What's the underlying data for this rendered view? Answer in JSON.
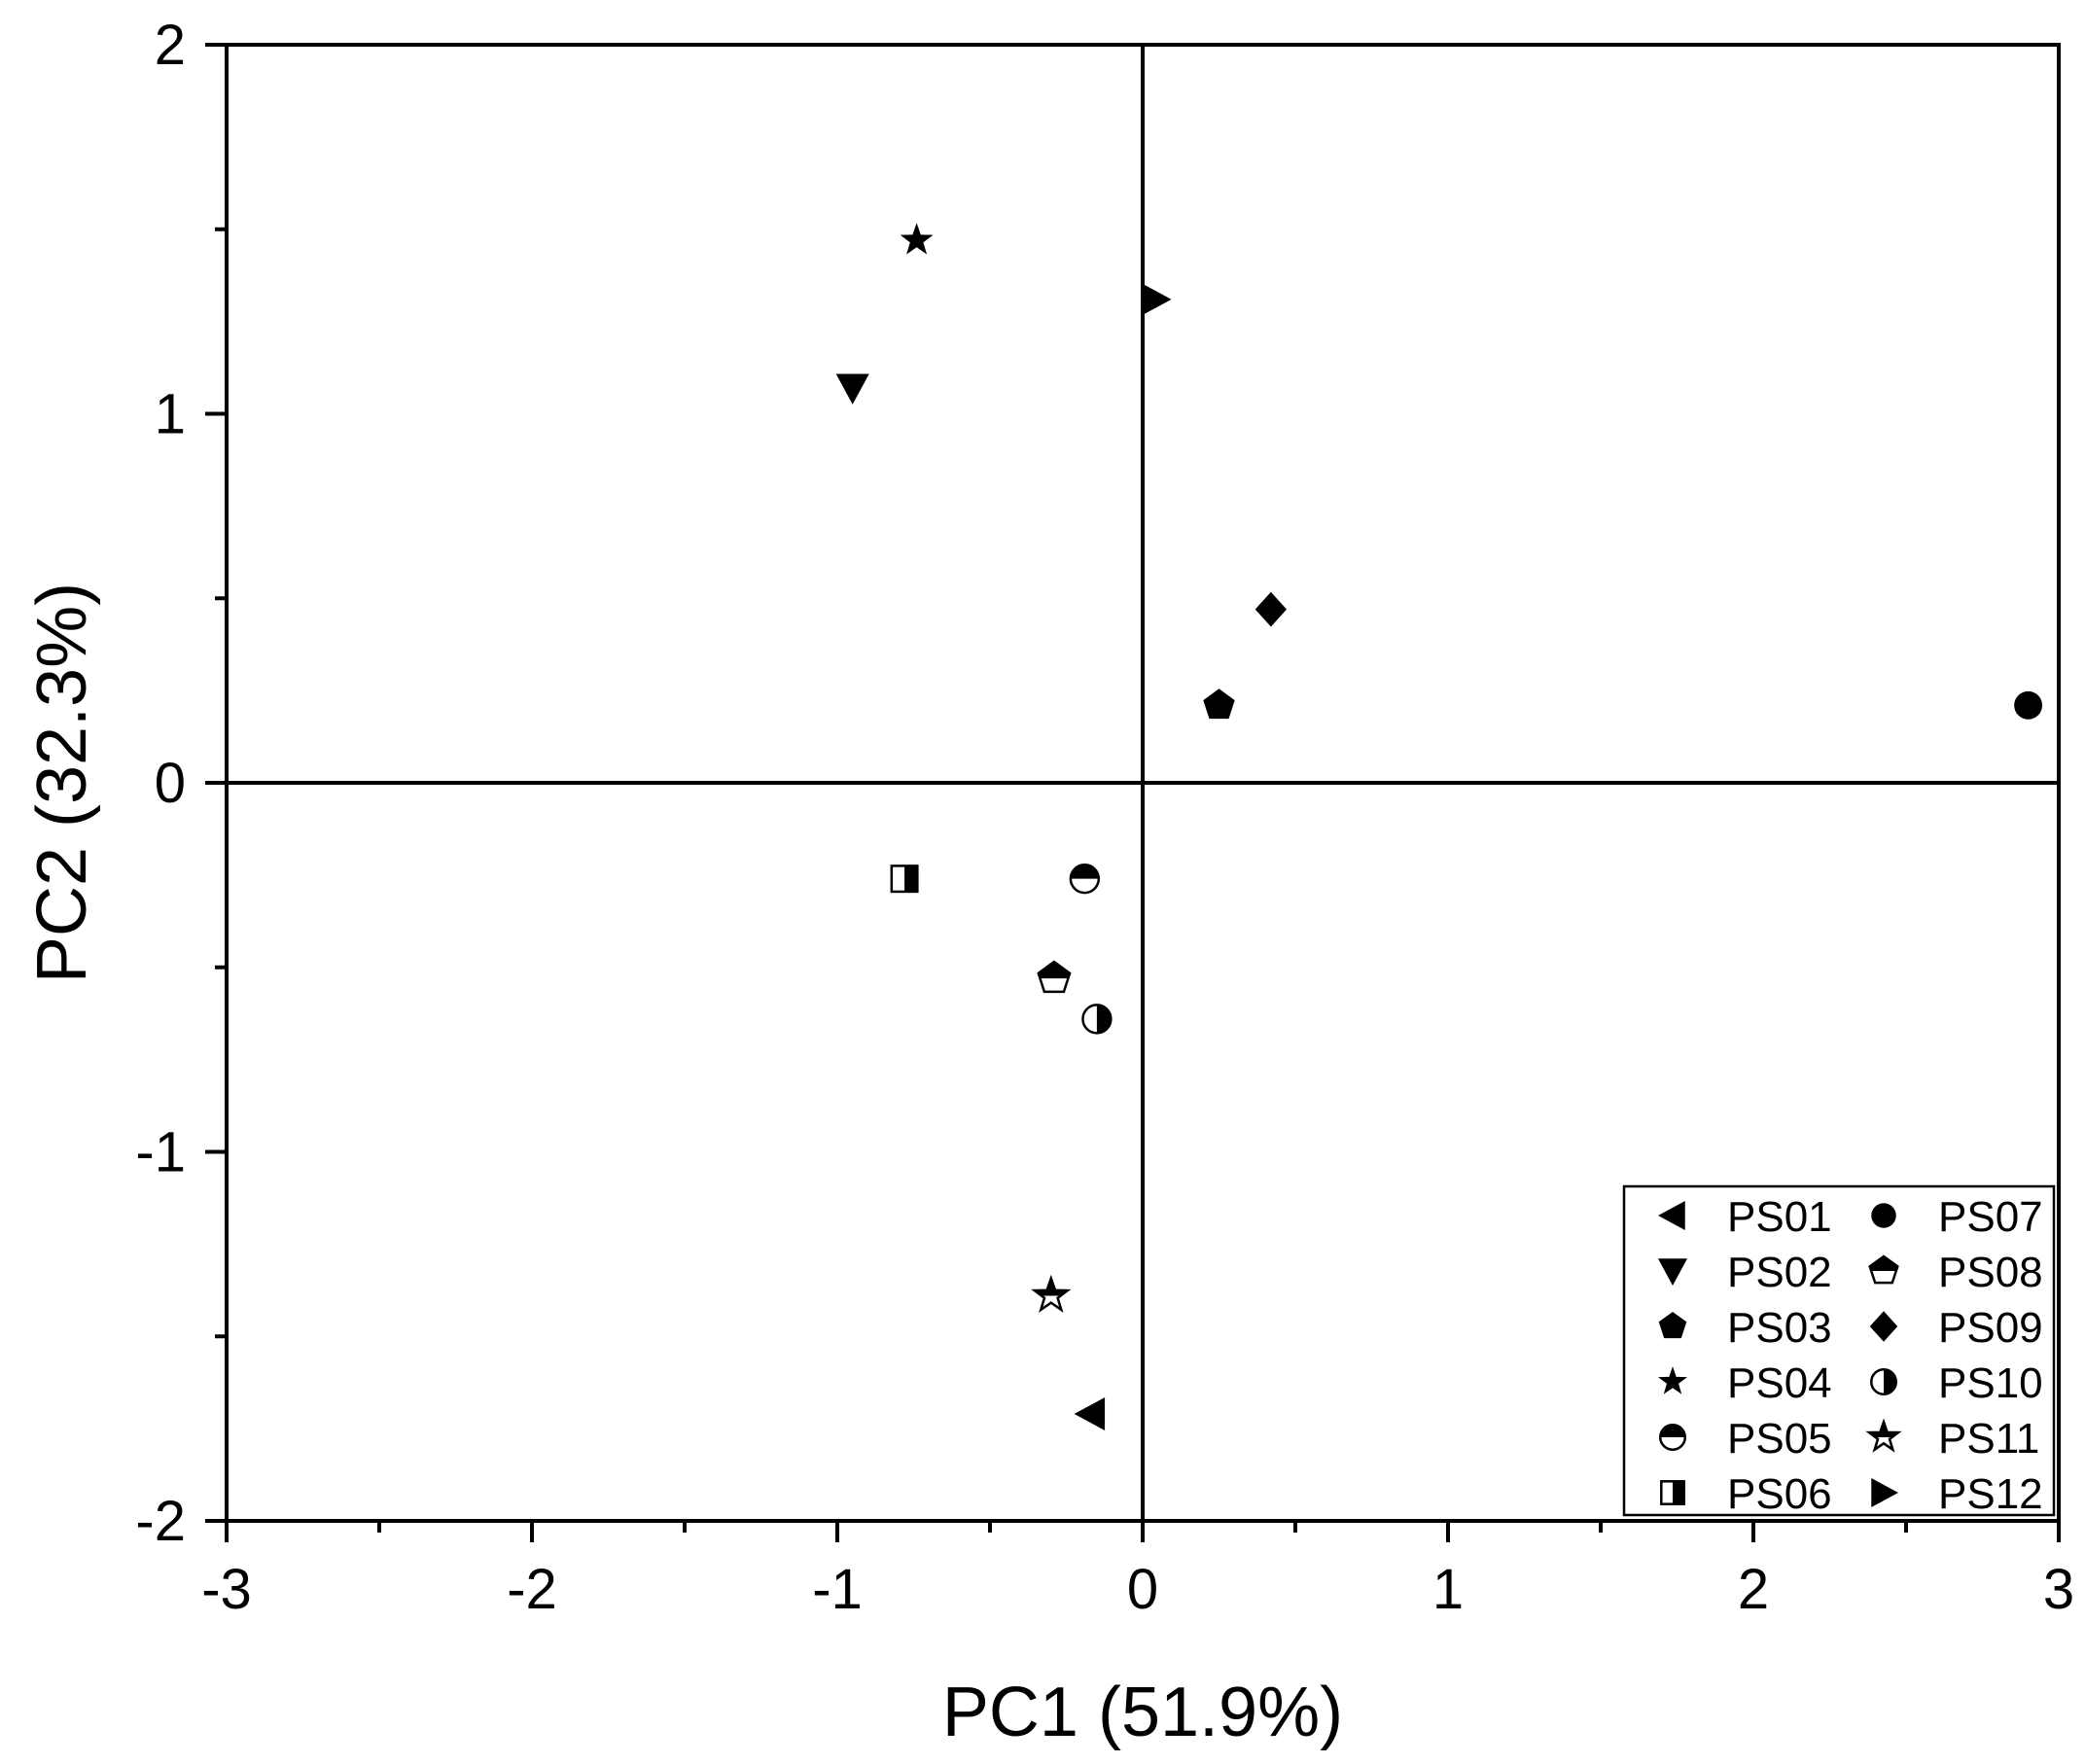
{
  "chart_data": {
    "type": "scatter",
    "title": "",
    "xlabel": "PC1 (51.9%)",
    "ylabel": "PC2 (32.3%)",
    "xlim": [
      -3,
      3
    ],
    "ylim": [
      -2,
      2
    ],
    "xticks": [
      -3,
      -2,
      -1,
      0,
      1,
      2,
      3
    ],
    "xtick_labels": [
      "-3",
      "-2",
      "-1",
      "0",
      "1",
      "2",
      "3"
    ],
    "yticks": [
      -2,
      -1,
      0,
      1,
      2
    ],
    "ytick_labels": [
      "-2",
      "-1",
      "0",
      "1",
      "2"
    ],
    "grid": false,
    "reference_lines": {
      "x": 0,
      "y": 0
    },
    "legend": {
      "position": "bottom-right",
      "columns": 2
    },
    "series": [
      {
        "name": "PS01",
        "marker": "triangle-left",
        "x": -0.17,
        "y": -1.71
      },
      {
        "name": "PS02",
        "marker": "triangle-down",
        "x": -0.95,
        "y": 1.07
      },
      {
        "name": "PS03",
        "marker": "pentagon",
        "x": 0.25,
        "y": 0.21
      },
      {
        "name": "PS04",
        "marker": "star",
        "x": -0.74,
        "y": 1.47
      },
      {
        "name": "PS05",
        "marker": "circle-half-top",
        "x": -0.19,
        "y": -0.26
      },
      {
        "name": "PS06",
        "marker": "square-half-right",
        "x": -0.78,
        "y": -0.26
      },
      {
        "name": "PS07",
        "marker": "circle",
        "x": 2.9,
        "y": 0.21
      },
      {
        "name": "PS08",
        "marker": "pentagon-half-top",
        "x": -0.29,
        "y": -0.53
      },
      {
        "name": "PS09",
        "marker": "diamond",
        "x": 0.42,
        "y": 0.47
      },
      {
        "name": "PS10",
        "marker": "circle-half-right",
        "x": -0.15,
        "y": -0.64
      },
      {
        "name": "PS11",
        "marker": "star-half",
        "x": -0.3,
        "y": -1.39
      },
      {
        "name": "PS12",
        "marker": "triangle-right",
        "x": 0.04,
        "y": 1.31
      }
    ]
  }
}
